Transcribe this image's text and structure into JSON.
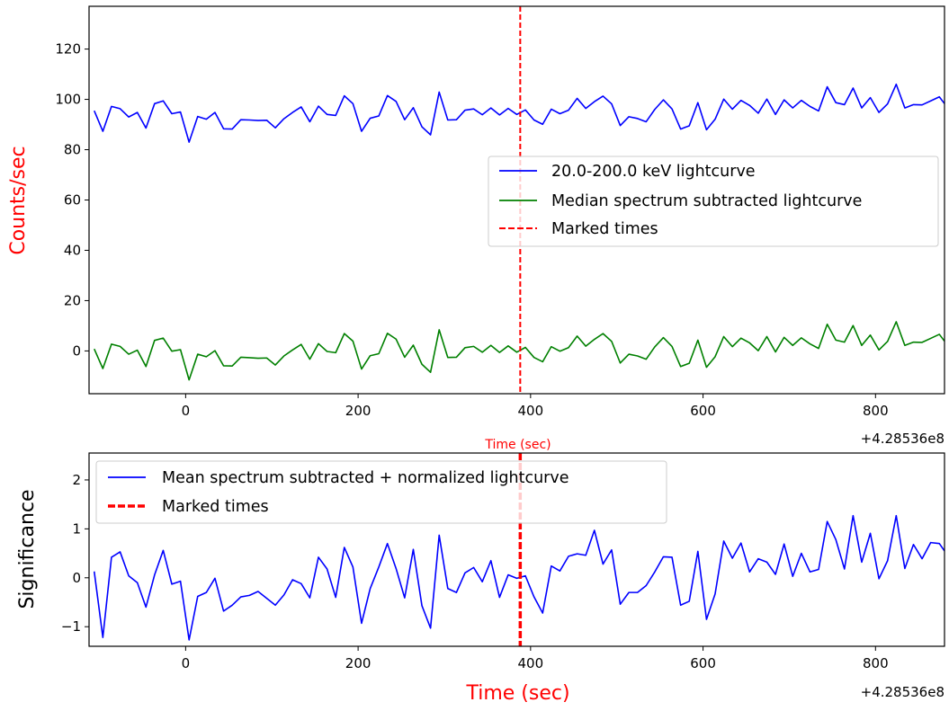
{
  "chart_data": [
    {
      "type": "line",
      "title": "",
      "xlabel": "Time (sec)",
      "ylabel": "Counts/sec",
      "xlabel_color": "#ff0000",
      "ylabel_color": "#ff0000",
      "x_offset_label": "+4.28536e8",
      "xlim": [
        -112,
        880
      ],
      "ylim": [
        -17,
        137
      ],
      "xticks": [
        0,
        200,
        400,
        600,
        800
      ],
      "xtick_labels": [
        "0",
        "200",
        "400",
        "600",
        "800"
      ],
      "yticks": [
        0,
        20,
        40,
        60,
        80,
        100,
        120
      ],
      "ytick_labels": [
        "0",
        "20",
        "40",
        "60",
        "80",
        "100",
        "120"
      ],
      "grid": false,
      "legend_position": "center-right",
      "x": [
        -106,
        -96,
        -86,
        -76,
        -66,
        -56,
        -46,
        -36,
        -26,
        -16,
        -6,
        4,
        14,
        24,
        34,
        44,
        54,
        64,
        74,
        84,
        94,
        104,
        114,
        124,
        134,
        144,
        154,
        164,
        174,
        184,
        194,
        204,
        214,
        224,
        234,
        244,
        254,
        264,
        274,
        284,
        294,
        304,
        314,
        324,
        334,
        344,
        354,
        364,
        374,
        384,
        394,
        404,
        414,
        424,
        434,
        444,
        454,
        464,
        474,
        484,
        494,
        504,
        514,
        524,
        534,
        544,
        554,
        564,
        574,
        584,
        594,
        604,
        614,
        624,
        634,
        644,
        654,
        664,
        674,
        684,
        694,
        704,
        714,
        724,
        734,
        744,
        754,
        764,
        774,
        784,
        794,
        804,
        814,
        824,
        834,
        844,
        854,
        864,
        874,
        880
      ],
      "series": [
        {
          "name": "20.0-200.0 keV lightcurve",
          "color": "#0000ff",
          "style": "solid",
          "values": [
            95.5,
            87.3,
            97.2,
            96.3,
            93.0,
            94.8,
            88.6,
            98.3,
            99.4,
            94.3,
            95.0,
            83.0,
            93.2,
            92.1,
            94.8,
            88.3,
            88.2,
            91.9,
            91.8,
            91.6,
            91.7,
            88.7,
            92.3,
            94.8,
            97.0,
            91.1,
            97.3,
            94.0,
            93.6,
            101.4,
            98.3,
            87.3,
            92.5,
            93.4,
            101.5,
            99.2,
            91.9,
            96.7,
            89.1,
            85.9,
            102.9,
            91.8,
            91.9,
            95.7,
            96.2,
            93.9,
            96.6,
            93.8,
            96.4,
            94.0,
            95.8,
            91.8,
            90.1,
            96.1,
            94.3,
            95.7,
            100.4,
            96.4,
            99.1,
            101.3,
            98.2,
            89.6,
            93.1,
            92.4,
            91.1,
            96.0,
            99.8,
            96.2,
            88.2,
            89.5,
            98.7,
            87.9,
            92.1,
            100.1,
            96.1,
            99.6,
            97.6,
            94.5,
            100.1,
            94.0,
            99.8,
            96.6,
            99.6,
            97.2,
            95.4,
            105.0,
            98.7,
            97.9,
            104.5,
            96.6,
            100.7,
            94.8,
            98.2,
            106.0,
            96.6,
            97.9,
            97.8,
            99.4,
            101.0,
            98.3
          ]
        },
        {
          "name": "Median spectrum subtracted lightcurve",
          "color": "#008000",
          "style": "solid",
          "values": [
            0.8,
            -7.0,
            2.7,
            1.8,
            -1.3,
            0.3,
            -6.2,
            4.2,
            5.1,
            -0.1,
            0.5,
            -11.5,
            -1.3,
            -2.3,
            0.1,
            -5.9,
            -6.0,
            -2.5,
            -2.7,
            -2.9,
            -2.8,
            -5.6,
            -2.0,
            0.4,
            2.6,
            -3.3,
            2.9,
            -0.2,
            -0.7,
            6.9,
            3.9,
            -7.2,
            -1.9,
            -1.1,
            7.0,
            4.7,
            -2.5,
            2.3,
            -5.3,
            -8.5,
            8.4,
            -2.6,
            -2.5,
            1.3,
            1.8,
            -0.5,
            2.2,
            -0.6,
            2.0,
            -0.5,
            1.4,
            -2.6,
            -4.3,
            1.7,
            -0.1,
            1.3,
            5.9,
            1.9,
            4.6,
            6.9,
            3.8,
            -4.8,
            -1.3,
            -2.0,
            -3.3,
            1.6,
            5.3,
            1.8,
            -6.2,
            -4.9,
            4.3,
            -6.5,
            -2.3,
            5.7,
            1.7,
            5.1,
            3.2,
            0.1,
            5.7,
            -0.4,
            5.4,
            2.2,
            5.2,
            2.8,
            1.0,
            10.6,
            4.3,
            3.5,
            10.1,
            2.2,
            6.3,
            0.4,
            3.8,
            11.6,
            2.2,
            3.5,
            3.4,
            5.0,
            6.6,
            3.9
          ]
        }
      ],
      "vlines": [
        {
          "name": "Marked times",
          "x": 388,
          "color": "#ff0000",
          "style": "dashed"
        }
      ]
    },
    {
      "type": "line",
      "title": "",
      "xlabel": "Time (sec)",
      "ylabel": "Significance",
      "xlabel_color": "#ff0000",
      "ylabel_color": "#000000",
      "x_offset_label": "+4.28536e8",
      "xlim": [
        -112,
        880
      ],
      "ylim": [
        -1.4,
        2.55
      ],
      "xticks": [
        0,
        200,
        400,
        600,
        800
      ],
      "xtick_labels": [
        "0",
        "200",
        "400",
        "600",
        "800"
      ],
      "yticks": [
        -1,
        0,
        1,
        2
      ],
      "ytick_labels": [
        "−1",
        "0",
        "1",
        "2"
      ],
      "grid": false,
      "legend_position": "top-left",
      "x": [
        -106,
        -96,
        -86,
        -76,
        -66,
        -56,
        -46,
        -36,
        -26,
        -16,
        -6,
        4,
        14,
        24,
        34,
        44,
        54,
        64,
        74,
        84,
        94,
        104,
        114,
        124,
        134,
        144,
        154,
        164,
        174,
        184,
        194,
        204,
        214,
        224,
        234,
        244,
        254,
        264,
        274,
        284,
        294,
        304,
        314,
        324,
        334,
        344,
        354,
        364,
        374,
        384,
        394,
        404,
        414,
        424,
        434,
        444,
        454,
        464,
        474,
        484,
        494,
        504,
        514,
        524,
        534,
        544,
        554,
        564,
        574,
        584,
        594,
        604,
        614,
        624,
        634,
        644,
        654,
        664,
        674,
        684,
        694,
        704,
        714,
        724,
        734,
        744,
        754,
        764,
        774,
        784,
        794,
        804,
        814,
        824,
        834,
        844,
        854,
        864,
        874,
        880
      ],
      "series": [
        {
          "name": "Mean spectrum subtracted + normalized lightcurve",
          "color": "#0000ff",
          "style": "solid",
          "values": [
            0.13,
            -1.22,
            0.42,
            0.53,
            0.04,
            -0.1,
            -0.6,
            0.06,
            0.56,
            -0.13,
            -0.07,
            -1.27,
            -0.38,
            -0.3,
            -0.01,
            -0.68,
            -0.56,
            -0.39,
            -0.36,
            -0.28,
            -0.42,
            -0.56,
            -0.35,
            -0.04,
            -0.12,
            -0.41,
            0.42,
            0.18,
            -0.4,
            0.62,
            0.22,
            -0.93,
            -0.22,
            0.22,
            0.7,
            0.19,
            -0.41,
            0.58,
            -0.57,
            -1.03,
            0.87,
            -0.22,
            -0.3,
            0.1,
            0.21,
            -0.08,
            0.35,
            -0.4,
            0.06,
            -0.01,
            0.04,
            -0.39,
            -0.72,
            0.24,
            0.14,
            0.44,
            0.49,
            0.46,
            0.97,
            0.28,
            0.57,
            -0.54,
            -0.3,
            -0.3,
            -0.16,
            0.12,
            0.43,
            0.42,
            -0.56,
            -0.48,
            0.54,
            -0.85,
            -0.33,
            0.75,
            0.4,
            0.71,
            0.12,
            0.39,
            0.32,
            0.07,
            0.69,
            0.03,
            0.5,
            0.12,
            0.17,
            1.15,
            0.78,
            0.18,
            1.27,
            0.32,
            0.91,
            -0.02,
            0.35,
            1.27,
            0.19,
            0.68,
            0.39,
            0.72,
            0.7,
            0.55
          ]
        }
      ],
      "vlines": [
        {
          "name": "Marked times",
          "x": 388,
          "color": "#ff0000",
          "style": "dashed"
        }
      ]
    }
  ]
}
